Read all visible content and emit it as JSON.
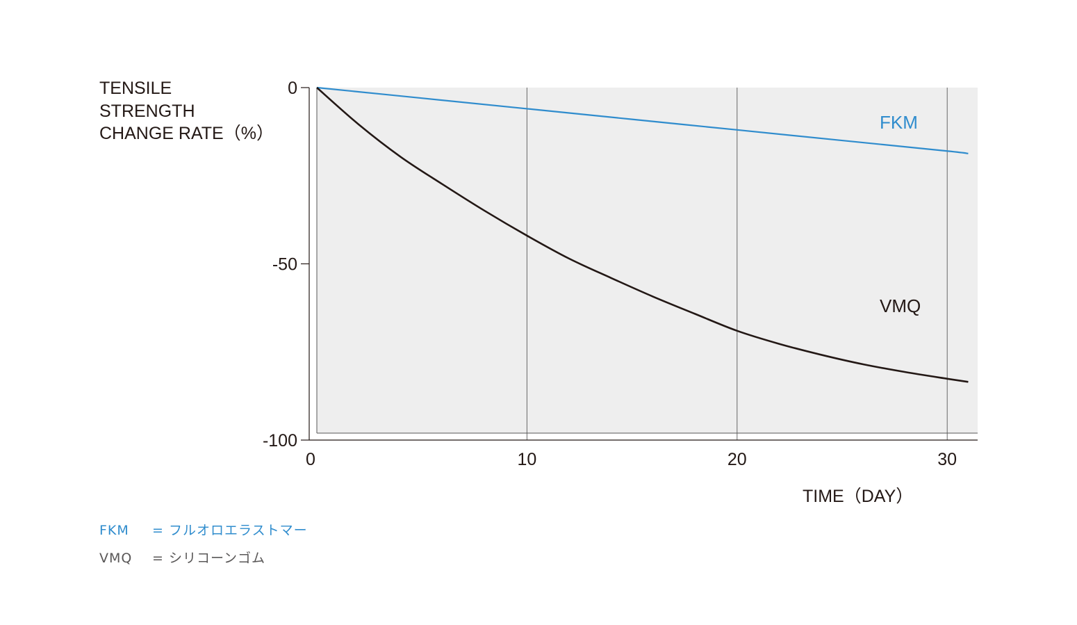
{
  "chart_data": {
    "type": "line",
    "ylabel_lines": [
      "TENSILE",
      "STRENGTH",
      "CHANGE RATE（%）"
    ],
    "xlabel": "TIME（DAY）",
    "xlim": [
      0,
      31
    ],
    "ylim": [
      -100,
      0
    ],
    "x_ticks": [
      0,
      10,
      20,
      30
    ],
    "x_tick_labels": [
      "0",
      "10",
      "20",
      "30"
    ],
    "y_ticks": [
      0,
      -50,
      -100
    ],
    "y_tick_labels": [
      "0",
      "-50",
      "-100"
    ],
    "grid": "vertical",
    "series": [
      {
        "name": "FKM",
        "color": "#2f8ccd",
        "x": [
          0,
          5,
          10,
          15,
          20,
          25,
          30,
          31
        ],
        "y": [
          0,
          -3,
          -6,
          -9,
          -12,
          -15,
          -18,
          -18.7
        ]
      },
      {
        "name": "VMQ",
        "color": "#231815",
        "x": [
          0,
          2,
          4,
          6,
          8,
          10,
          12,
          14,
          16,
          18,
          20,
          22,
          24,
          26,
          28,
          30,
          31
        ],
        "y": [
          0,
          -10.5,
          -19.7,
          -27.5,
          -35,
          -42,
          -48.5,
          -54,
          -59.3,
          -64.2,
          -69,
          -72.7,
          -75.8,
          -78.5,
          -80.7,
          -82.6,
          -83.5
        ]
      }
    ]
  },
  "legend": {
    "fkm": {
      "code": "FKM",
      "eq": "=",
      "desc": "フルオロエラストマー",
      "color": "#2f8ccd"
    },
    "vmq": {
      "code": "VMQ",
      "eq": "=",
      "desc": "シリコーンゴム",
      "color": "#595757"
    }
  }
}
